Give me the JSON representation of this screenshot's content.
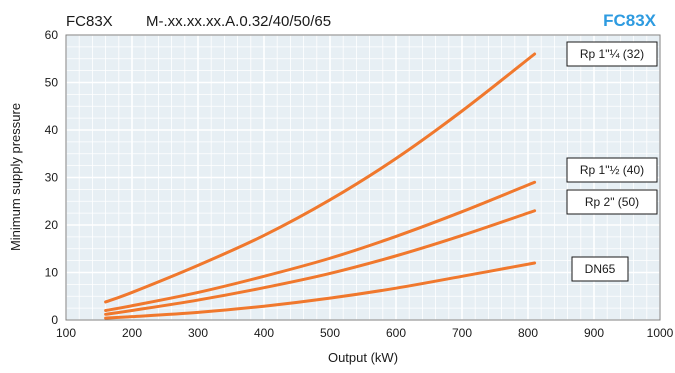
{
  "title": "FC83X",
  "subtitle": "M-.xx.xx.xx.A.0.32/40/50/65",
  "brand_label": "FC83X",
  "colors": {
    "brand": "#2e9be0",
    "line": "#f0782d",
    "plot_bg": "#e7eff4",
    "grid": "#ffffff",
    "border": "#808080"
  },
  "chart_data": {
    "type": "line",
    "title": "FC83X",
    "subtitle": "M-.xx.xx.xx.A.0.32/40/50/65",
    "xlabel": "Output (kW)",
    "ylabel": "Minimum supply pressure",
    "xlim": [
      100,
      1000
    ],
    "ylim": [
      0,
      60
    ],
    "xticks": [
      100,
      200,
      300,
      400,
      500,
      600,
      700,
      800,
      900,
      1000
    ],
    "yticks": [
      0,
      10,
      20,
      30,
      40,
      50,
      60
    ],
    "grid": true,
    "series": [
      {
        "name": "Rp 1\"¼ (32)",
        "x": [
          160,
          200,
          300,
          400,
          500,
          600,
          700,
          810
        ],
        "y": [
          3.8,
          5.8,
          11.5,
          17.8,
          25.3,
          34.0,
          44.0,
          56.0
        ]
      },
      {
        "name": "Rp 1\"½  (40)",
        "x": [
          160,
          200,
          300,
          400,
          500,
          600,
          700,
          810
        ],
        "y": [
          2.0,
          3.0,
          5.8,
          9.2,
          13.0,
          17.6,
          22.8,
          29.0
        ]
      },
      {
        "name": "Rp 2\" (50)",
        "x": [
          160,
          200,
          300,
          400,
          500,
          600,
          700,
          810
        ],
        "y": [
          1.2,
          2.0,
          4.2,
          6.8,
          9.8,
          13.5,
          17.8,
          23.0
        ]
      },
      {
        "name": "DN65",
        "x": [
          160,
          200,
          300,
          400,
          500,
          600,
          700,
          810
        ],
        "y": [
          0.4,
          0.7,
          1.6,
          2.9,
          4.6,
          6.7,
          9.2,
          12.0
        ]
      }
    ]
  }
}
